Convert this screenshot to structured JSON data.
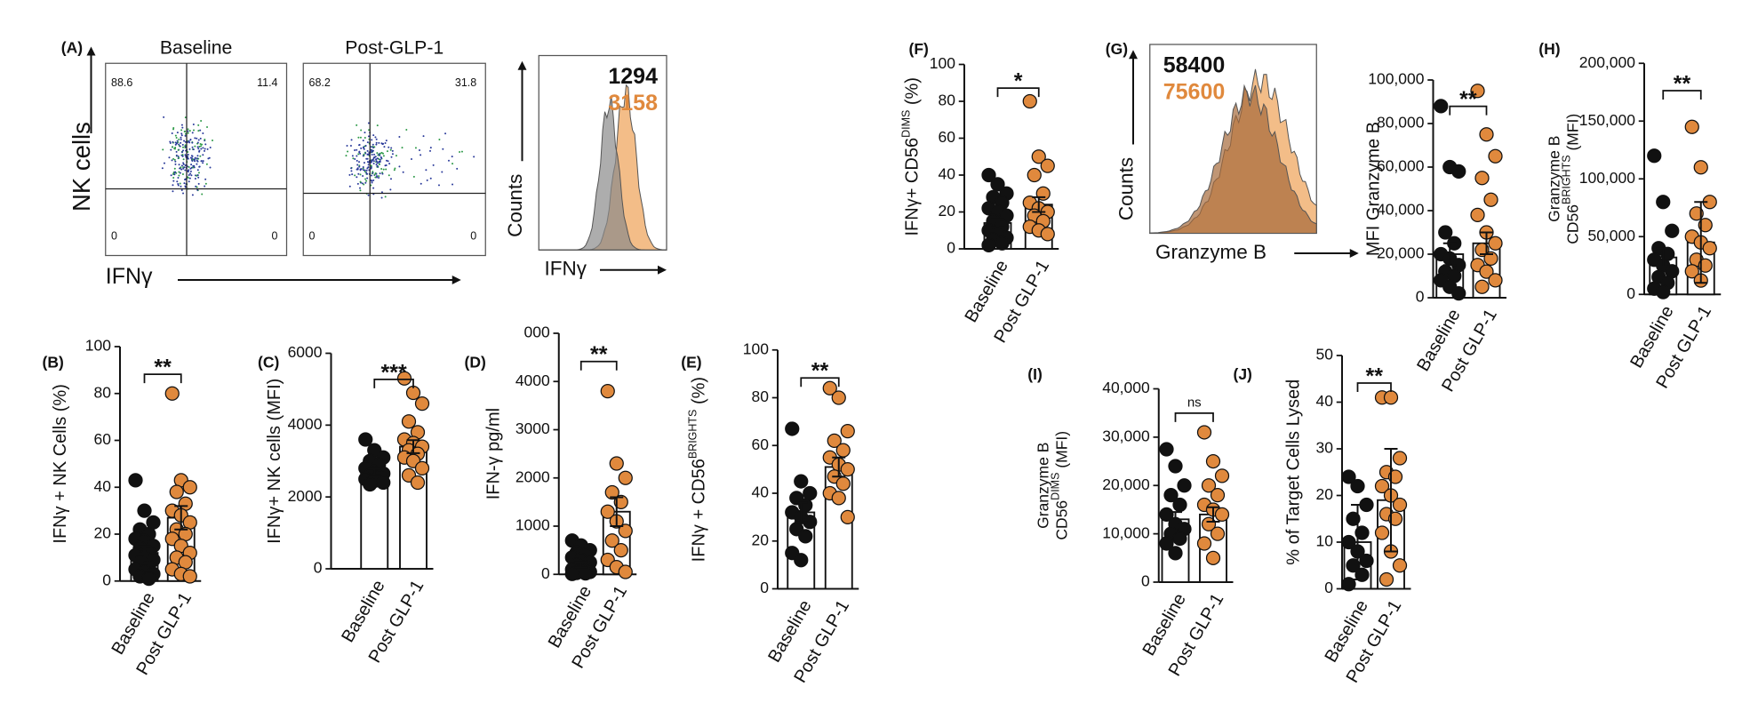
{
  "chart_data": [
    {
      "type": "flow",
      "panel": "(A)",
      "titles": [
        "Baseline",
        "Post-GLP-1"
      ],
      "ylabel": "NK cells",
      "xlabel": "IFNγ",
      "quadrants": [
        [
          88.6,
          11.4,
          0,
          0
        ],
        [
          68.2,
          31.8,
          0,
          0
        ]
      ]
    },
    {
      "type": "histogram-overlay",
      "ylabel": "Counts",
      "xlabel": "IFNγ",
      "mfi": [
        {
          "value": 1294,
          "color": "#111111"
        },
        {
          "value": 3158,
          "color": "#e0893d"
        }
      ]
    },
    {
      "type": "dotbar",
      "panel": "(B)",
      "ylabel": [
        [
          {
            "text": "IFNγ + NK Cells (%)"
          }
        ]
      ],
      "categories": [
        "Baseline",
        "Post GLP-1"
      ],
      "means": [
        12,
        27
      ],
      "errors": [
        3,
        5
      ],
      "significance": "**",
      "colors": [
        "#111111",
        "#e0893d"
      ],
      "points": [
        [
          43,
          30,
          25,
          22,
          20,
          18,
          17,
          15,
          14,
          12,
          11,
          10,
          9,
          8,
          6,
          5,
          4,
          3,
          2,
          1
        ],
        [
          80,
          43,
          40,
          38,
          33,
          30,
          28,
          25,
          22,
          20,
          18,
          15,
          12,
          10,
          8,
          5,
          3,
          2
        ]
      ],
      "ylim": [
        0,
        100
      ],
      "yticks": [
        0,
        20,
        40,
        60,
        80,
        100
      ]
    },
    {
      "type": "dotbar",
      "panel": "(C)",
      "ylabel": [
        [
          {
            "text": "IFNγ+ NK cells (MFI)"
          }
        ]
      ],
      "categories": [
        "Baseline",
        "Post GLP-1"
      ],
      "means": [
        2700,
        3400
      ],
      "errors": [
        80,
        180
      ],
      "significance": "***",
      "colors": [
        "#111111",
        "#e0893d"
      ],
      "points": [
        [
          3600,
          3300,
          3100,
          3000,
          2900,
          2800,
          2700,
          2650,
          2600,
          2550,
          2500,
          2450,
          2400,
          2350
        ],
        [
          5300,
          4900,
          4600,
          4100,
          3800,
          3600,
          3500,
          3400,
          3300,
          3200,
          3100,
          3000,
          2800,
          2600,
          2400
        ]
      ],
      "ylim": [
        0,
        6000
      ],
      "yticks": [
        0,
        2000,
        4000,
        6000
      ]
    },
    {
      "type": "dotbar",
      "panel": "(D)",
      "ylabel": [
        [
          {
            "text": "IFN-γ pg/ml"
          }
        ]
      ],
      "categories": [
        "Baseline",
        "Post GLP-1"
      ],
      "means": [
        200,
        1300
      ],
      "errors": [
        60,
        300
      ],
      "significance": "**",
      "colors": [
        "#111111",
        "#e0893d"
      ],
      "points": [
        [
          700,
          600,
          500,
          450,
          400,
          350,
          300,
          250,
          200,
          150,
          100,
          80,
          50,
          30,
          20,
          10
        ],
        [
          3800,
          2300,
          2000,
          1700,
          1500,
          1300,
          1100,
          900,
          700,
          500,
          300,
          150,
          50
        ]
      ],
      "ylim": [
        0,
        5000
      ],
      "yticks": [
        0,
        1000,
        2000,
        3000,
        4000,
        {
          "value": 5000,
          "label": "000"
        }
      ]
    },
    {
      "type": "dotbar",
      "panel": "(E)",
      "ylabel": [
        [
          {
            "text": "IFNγ + CD56"
          },
          {
            "text": "BRIGHTS",
            "sup": true
          },
          {
            "text": " (%)"
          }
        ]
      ],
      "categories": [
        "Baseline",
        "Post GLP-1"
      ],
      "means": [
        32,
        51
      ],
      "errors": [
        4,
        4
      ],
      "significance": "**",
      "colors": [
        "#111111",
        "#e0893d"
      ],
      "points": [
        [
          67,
          45,
          40,
          38,
          35,
          32,
          30,
          28,
          25,
          22,
          15,
          12
        ],
        [
          84,
          80,
          66,
          62,
          58,
          55,
          52,
          50,
          47,
          44,
          40,
          38,
          30
        ]
      ],
      "ylim": [
        0,
        100
      ],
      "yticks": [
        0,
        20,
        40,
        60,
        80,
        100
      ]
    },
    {
      "type": "dotbar",
      "panel": "(F)",
      "ylabel": [
        [
          {
            "text": "IFNγ+ CD56"
          },
          {
            "text": "DIMS",
            "sup": true
          },
          {
            "text": " (%)"
          }
        ]
      ],
      "categories": [
        "Baseline",
        "Post GLP-1"
      ],
      "means": [
        14,
        24
      ],
      "errors": [
        2,
        4
      ],
      "significance": "*",
      "colors": [
        "#111111",
        "#e0893d"
      ],
      "points": [
        [
          40,
          35,
          30,
          28,
          25,
          22,
          20,
          18,
          15,
          12,
          10,
          8,
          6,
          5,
          3,
          2
        ],
        [
          80,
          50,
          45,
          40,
          30,
          25,
          22,
          20,
          18,
          15,
          12,
          10,
          8
        ]
      ],
      "ylim": [
        0,
        100
      ],
      "yticks": [
        0,
        20,
        40,
        60,
        80,
        100
      ]
    },
    {
      "type": "histogram-overlay",
      "panel": "(G)",
      "ylabel": "Counts",
      "xlabel": "Granzyme B",
      "mfi": [
        {
          "value": 58400,
          "color": "#111111"
        },
        {
          "value": 75600,
          "color": "#e0893d"
        }
      ]
    },
    {
      "type": "dotbar",
      "ylabel": [
        [
          {
            "text": "MFI Granzyme B"
          }
        ]
      ],
      "categories": [
        "Baseline",
        "Post GLP-1"
      ],
      "means": [
        20000,
        25000
      ],
      "errors": [
        5000,
        5000
      ],
      "significance": "**",
      "colors": [
        "#111111",
        "#e0893d"
      ],
      "points": [
        [
          88000,
          60000,
          58000,
          30000,
          25000,
          20000,
          18000,
          15000,
          12000,
          10000,
          8000,
          5000,
          2000
        ],
        [
          95000,
          75000,
          65000,
          55000,
          45000,
          38000,
          30000,
          25000,
          22000,
          18000,
          15000,
          12000,
          8000,
          5000
        ]
      ],
      "ylim": [
        0,
        100000
      ],
      "yticks": [
        0,
        {
          "value": 20000,
          "label": "20,000"
        },
        {
          "value": 40000,
          "label": "40,000"
        },
        {
          "value": 60000,
          "label": "60,000"
        },
        {
          "value": 80000,
          "label": "80,000"
        },
        {
          "value": 100000,
          "label": "100,000"
        }
      ]
    },
    {
      "type": "dotbar",
      "panel": "(H)",
      "ylabel": [
        [
          {
            "text": "Granzyme B"
          }
        ],
        [
          {
            "text": "CD56"
          },
          {
            "text": "BRIGHTS",
            "sup": true
          },
          {
            "text": " (MFI)"
          }
        ]
      ],
      "categories": [
        "Baseline",
        "Post GLP-1"
      ],
      "means": [
        32000,
        45000
      ],
      "errors": [
        8000,
        35000
      ],
      "significance": "**",
      "colors": [
        "#111111",
        "#e0893d"
      ],
      "points": [
        [
          120000,
          80000,
          55000,
          40000,
          35000,
          30000,
          25000,
          20000,
          15000,
          10000,
          5000,
          2000
        ],
        [
          145000,
          110000,
          80000,
          70000,
          60000,
          50000,
          45000,
          40000,
          30000,
          25000,
          20000,
          12000
        ]
      ],
      "ylim": [
        0,
        200000
      ],
      "yticks": [
        0,
        {
          "value": 50000,
          "label": "50,000"
        },
        {
          "value": 100000,
          "label": "100,000"
        },
        {
          "value": 150000,
          "label": "150,000"
        },
        {
          "value": 200000,
          "label": "200,000"
        }
      ]
    },
    {
      "type": "dotbar",
      "panel": "(I)",
      "ylabel": [
        [
          {
            "text": "Granzyme B"
          }
        ],
        [
          {
            "text": "CD56"
          },
          {
            "text": "DIMS",
            "sup": true
          },
          {
            "text": " (MFI)"
          }
        ]
      ],
      "categories": [
        "Baseline",
        "Post GLP-1"
      ],
      "means": [
        13000,
        14000
      ],
      "errors": [
        1500,
        1500
      ],
      "significance": "ns",
      "colors": [
        "#111111",
        "#e0893d"
      ],
      "points": [
        [
          27500,
          24000,
          20000,
          18000,
          16000,
          14000,
          12000,
          11000,
          10000,
          9000,
          8000,
          6000
        ],
        [
          31000,
          25000,
          22000,
          20000,
          18000,
          16000,
          15000,
          14000,
          12000,
          10000,
          8000,
          5000
        ]
      ],
      "ylim": [
        0,
        40000
      ],
      "yticks": [
        0,
        {
          "value": 10000,
          "label": "10,000"
        },
        {
          "value": 20000,
          "label": "20,000"
        },
        {
          "value": 30000,
          "label": "30,000"
        },
        {
          "value": 40000,
          "label": "40,000"
        }
      ]
    },
    {
      "type": "dotbar",
      "panel": "(J)",
      "ylabel": [
        [
          {
            "text": "% of Target Cells Lysed"
          }
        ]
      ],
      "categories": [
        "Baseline",
        "Post GLP-1"
      ],
      "means": [
        10,
        19
      ],
      "errors": [
        8,
        11
      ],
      "significance": "**",
      "colors": [
        "#111111",
        "#e0893d"
      ],
      "points": [
        [
          24,
          22,
          18,
          15,
          12,
          10,
          8,
          6,
          5,
          3,
          1
        ],
        [
          41,
          41,
          28,
          25,
          24,
          22,
          20,
          18,
          16,
          15,
          12,
          8,
          5,
          2
        ]
      ],
      "ylim": [
        0,
        50
      ],
      "yticks": [
        0,
        10,
        20,
        30,
        40,
        50
      ]
    }
  ]
}
